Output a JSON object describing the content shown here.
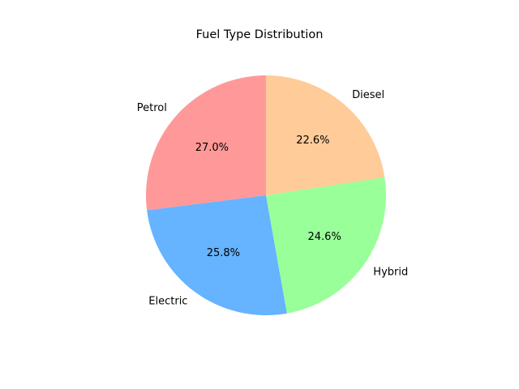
{
  "chart_data": {
    "type": "pie",
    "title": "Fuel Type Distribution",
    "categories": [
      "Petrol",
      "Electric",
      "Hybrid",
      "Diesel"
    ],
    "values": [
      27.0,
      25.8,
      24.6,
      22.6
    ],
    "percent_labels": [
      "27.0%",
      "25.8%",
      "24.6%",
      "22.6%"
    ],
    "colors": [
      "#ff9999",
      "#66b3ff",
      "#99ff99",
      "#ffcc99"
    ],
    "start_angle_deg": 90,
    "direction": "counterclockwise",
    "legend": "none"
  }
}
